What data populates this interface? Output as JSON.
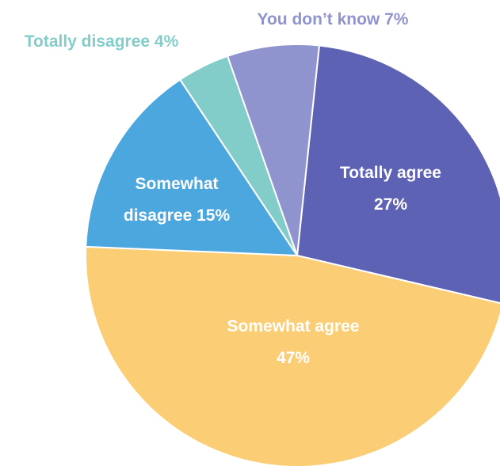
{
  "chart_data": {
    "type": "pie",
    "slices": [
      {
        "label_lines": [
          "Totally agree",
          "27%"
        ],
        "value": 27,
        "color": "#5e62b5",
        "label_color": "#ffffff",
        "label_placement": "inside"
      },
      {
        "label_lines": [
          "Somewhat agree",
          "47%"
        ],
        "value": 47,
        "color": "#fbcd74",
        "label_color": "#ffffff",
        "label_placement": "inside"
      },
      {
        "label_lines": [
          "Somewhat",
          "disagree 15%"
        ],
        "value": 15,
        "color": "#4da7df",
        "label_color": "#ffffff",
        "label_placement": "inside"
      },
      {
        "label_lines": [
          "Totally disagree 4%"
        ],
        "value": 4,
        "color": "#82cdc9",
        "label_color": "#82cdc9",
        "label_placement": "outside"
      },
      {
        "label_lines": [
          "You don’t know 7%"
        ],
        "value": 7,
        "color": "#8f93ce",
        "label_color": "#8f93ce",
        "label_placement": "outside"
      }
    ]
  }
}
